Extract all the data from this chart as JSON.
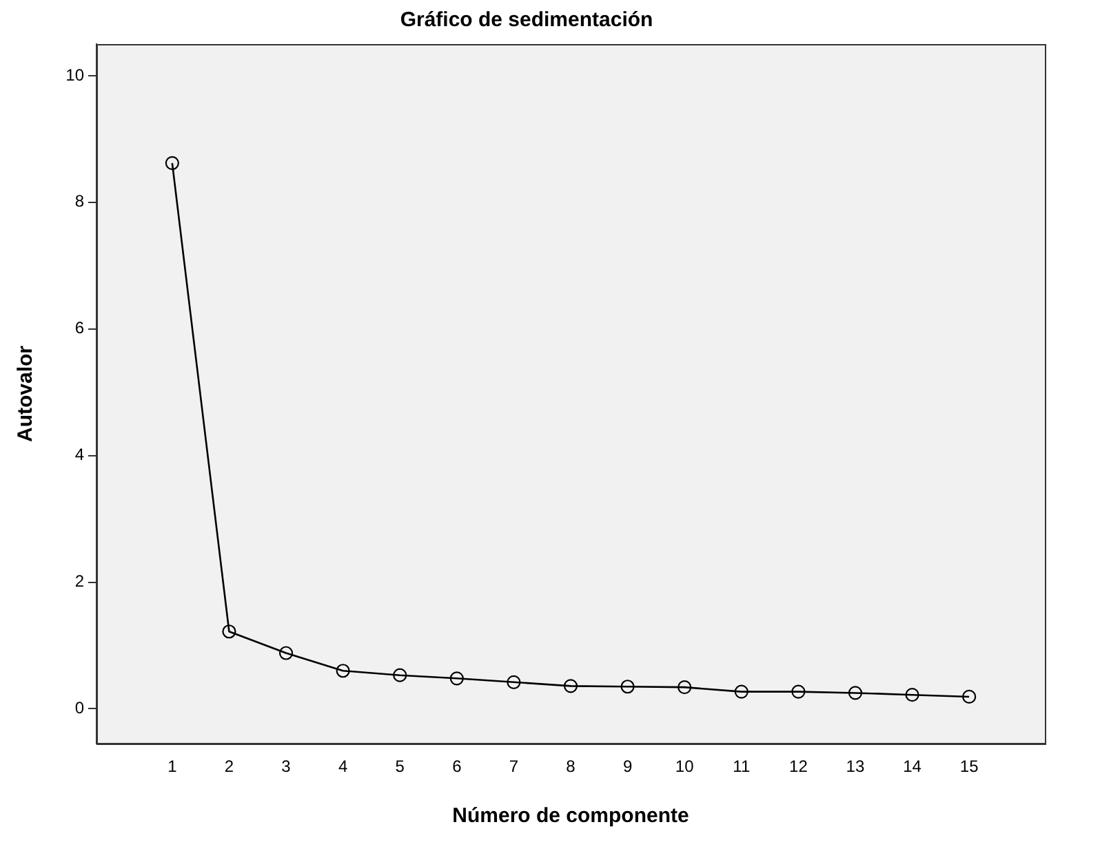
{
  "chart_data": {
    "type": "line",
    "title": "Gráfico de sedimentación",
    "xlabel": "Número de componente",
    "ylabel": "Autovalor",
    "x": [
      1,
      2,
      3,
      4,
      5,
      6,
      7,
      8,
      9,
      10,
      11,
      12,
      13,
      14,
      15
    ],
    "series": [
      {
        "color": "#000000",
        "values": [
          8.62,
          1.22,
          0.88,
          0.6,
          0.53,
          0.48,
          0.42,
          0.36,
          0.35,
          0.34,
          0.27,
          0.27,
          0.25,
          0.22,
          0.19
        ]
      }
    ],
    "xlim": [
      -0.33,
      16.33
    ],
    "xticks": [
      1,
      2,
      3,
      4,
      5,
      6,
      7,
      8,
      9,
      10,
      11,
      12,
      13,
      14,
      15
    ],
    "ylim": [
      -0.55,
      10.5
    ],
    "yticks": [
      0,
      2,
      4,
      6,
      8,
      10
    ],
    "grid": false,
    "legend": false,
    "marker": "circle",
    "line_style": "solid"
  }
}
